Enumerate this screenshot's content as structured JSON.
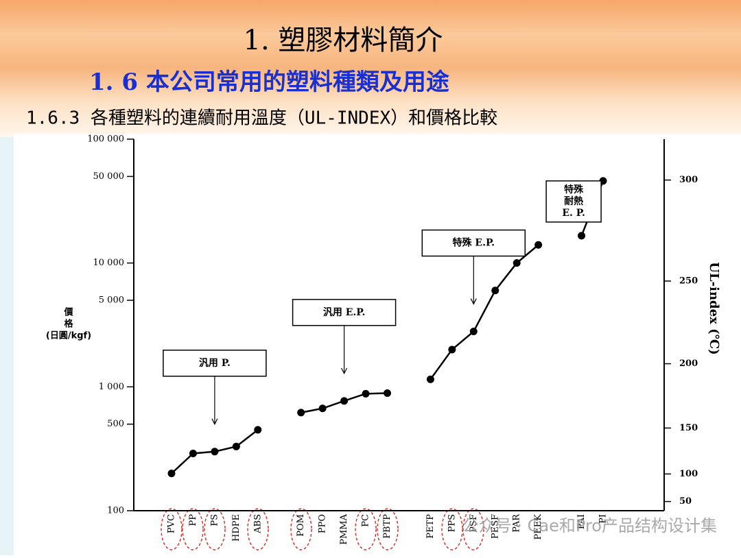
{
  "chart_data": {
    "type": "line",
    "title": "1.  塑膠材料簡介",
    "subtitle": "1. 6    本公司常用的塑料種類及用途",
    "caption": "1.6.3 各種塑料的連續耐用溫度（UL-INDEX）和價格比較",
    "ylabel_lines": [
      "價",
      "格",
      "(日圓/kgf)"
    ],
    "y2label": "UL-index (℃)",
    "categories": [
      "PVC",
      "PP",
      "PS",
      "HDPE",
      "ABS",
      null,
      "POM",
      "PPO",
      "PMMA",
      "PC",
      "PBTP",
      null,
      "PETP",
      "PPS",
      "PSF",
      "PESF",
      "PAR",
      "PEEK",
      null,
      "PAI",
      "PI"
    ],
    "values": [
      200,
      290,
      300,
      330,
      450,
      null,
      620,
      670,
      770,
      880,
      890,
      null,
      1150,
      2000,
      2800,
      6000,
      10000,
      14000,
      null,
      16600,
      46000
    ],
    "color": "#000000",
    "log_y": true,
    "ylim": [
      100,
      100000
    ],
    "yticks": [
      100,
      500,
      {
        "value": 1000,
        "label": "1 000"
      },
      {
        "value": 5000,
        "label": "5 000"
      },
      {
        "value": 10000,
        "label": "10 000"
      },
      {
        "value": 50000,
        "label": "50 000"
      },
      {
        "value": 100000,
        "label": "100 000"
      }
    ],
    "y2scale": "square",
    "y2lim": [
      0,
      318
    ],
    "y2ticks": [
      50,
      100,
      150,
      200,
      250,
      300
    ],
    "annotations": [
      {
        "lines": [
          "汎用 P."
        ],
        "category": 2
      },
      {
        "lines": [
          "汎用 E.P."
        ],
        "category": 8
      },
      {
        "lines": [
          "特殊 E.P."
        ],
        "category": 14
      },
      {
        "lines": [
          "特殊",
          "耐熱",
          "E. P."
        ],
        "category": 18
      }
    ],
    "watermark": "公众号 · Cae和Pro产品结构设计集"
  }
}
